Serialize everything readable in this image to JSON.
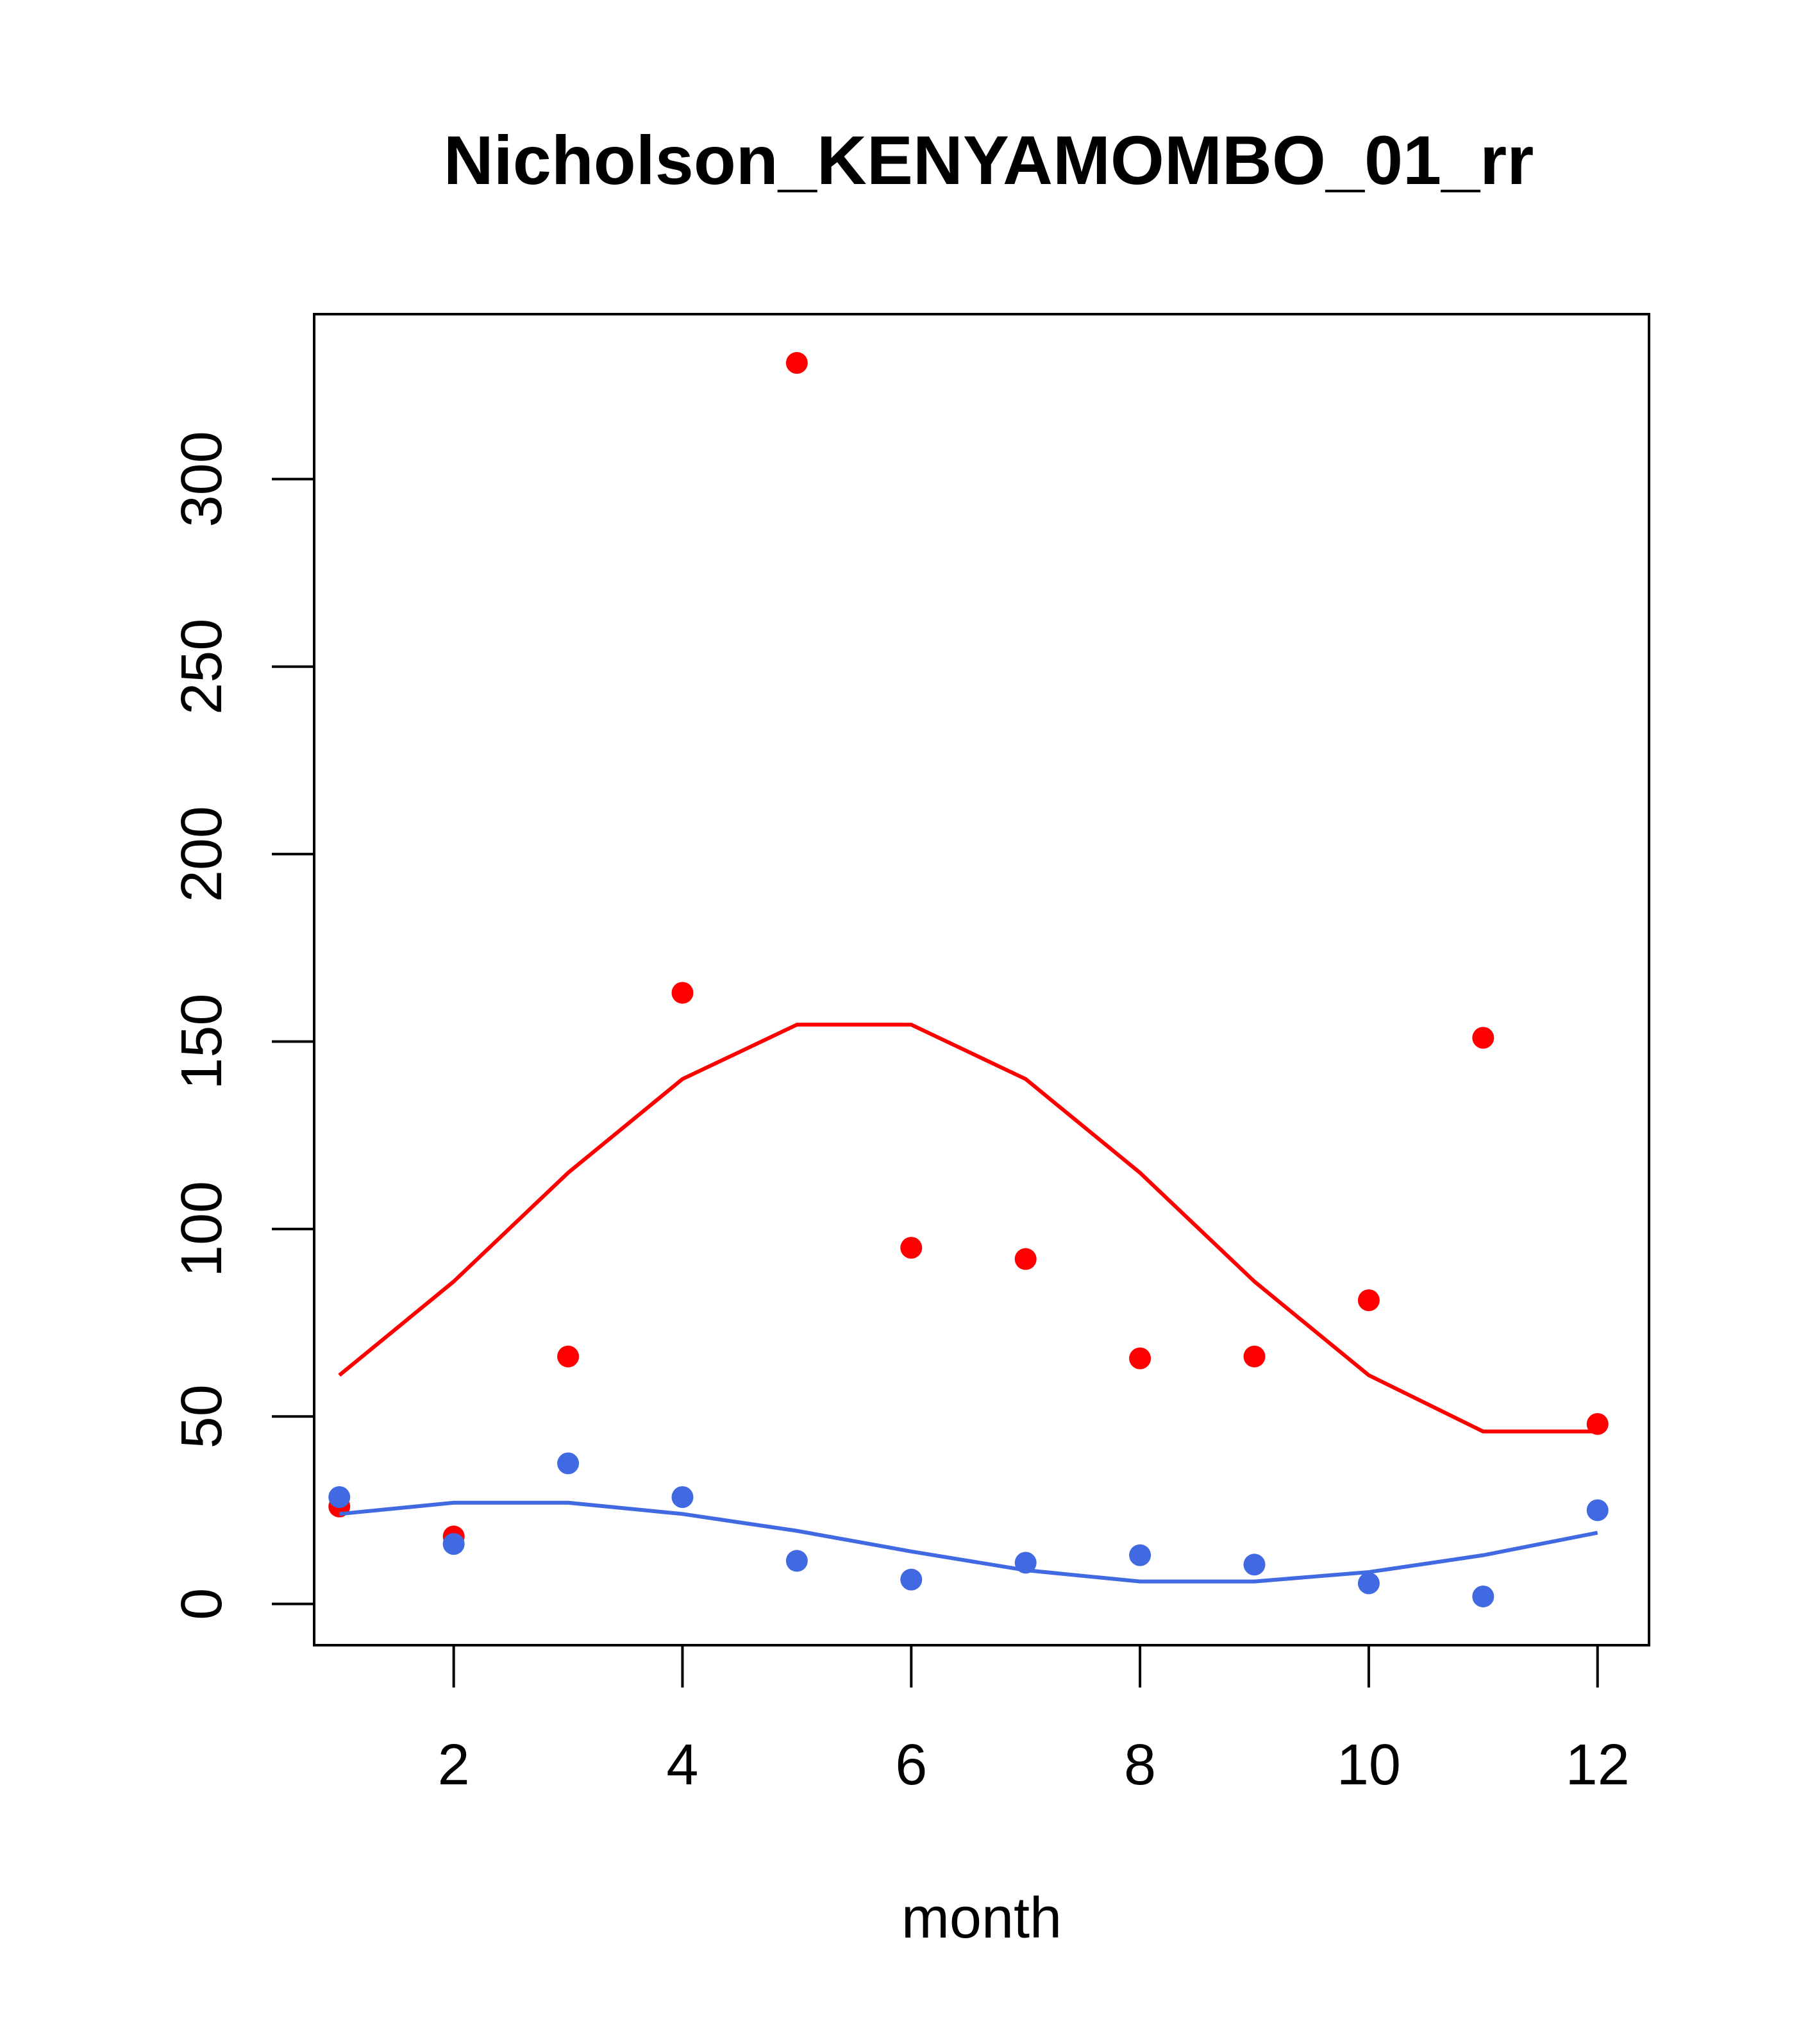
{
  "chart_data": {
    "type": "scatter",
    "title": "Nicholson_KENYAMOMBO_01_rr",
    "xlabel": "month",
    "ylabel": "",
    "xlim": [
      0.78,
      12.45
    ],
    "ylim": [
      -11,
      344
    ],
    "x_ticks": [
      2,
      4,
      6,
      8,
      10,
      12
    ],
    "x_tick_labels": [
      "2",
      "4",
      "6",
      "8",
      "10",
      "12"
    ],
    "y_ticks": [
      0,
      50,
      100,
      150,
      200,
      250,
      300
    ],
    "y_tick_labels": [
      "0",
      "50",
      "100",
      "150",
      "200",
      "250",
      "300"
    ],
    "grid": false,
    "legend": "none",
    "series": [
      {
        "name": "red-points",
        "kind": "points",
        "color": "#ff0000",
        "x": [
          1,
          2,
          3,
          4,
          5,
          6,
          7,
          8,
          9,
          10,
          11,
          12
        ],
        "values": [
          26,
          18,
          66,
          163,
          331,
          95,
          92,
          65.5,
          66,
          81,
          151,
          48
        ]
      },
      {
        "name": "red-curve",
        "kind": "line",
        "color": "#ff0000",
        "x": [
          1,
          2,
          3,
          4,
          5,
          6,
          7,
          8,
          9,
          10,
          11,
          12
        ],
        "values": [
          61,
          86,
          115,
          140,
          154.5,
          154.5,
          140,
          115,
          86,
          61,
          46,
          46
        ]
      },
      {
        "name": "blue-points",
        "kind": "points",
        "color": "#4169e1",
        "x": [
          1,
          2,
          3,
          4,
          5,
          6,
          7,
          8,
          9,
          10,
          11,
          12
        ],
        "values": [
          28.5,
          16,
          37.5,
          28.5,
          11.5,
          6.5,
          11,
          13,
          10.5,
          5.5,
          2,
          25
        ]
      },
      {
        "name": "blue-curve",
        "kind": "line",
        "color": "#4169e1",
        "x": [
          1,
          2,
          3,
          4,
          5,
          6,
          7,
          8,
          9,
          10,
          11,
          12
        ],
        "values": [
          24,
          27,
          27,
          24,
          19.5,
          14,
          9,
          6,
          6,
          8.5,
          13,
          19
        ]
      }
    ]
  }
}
